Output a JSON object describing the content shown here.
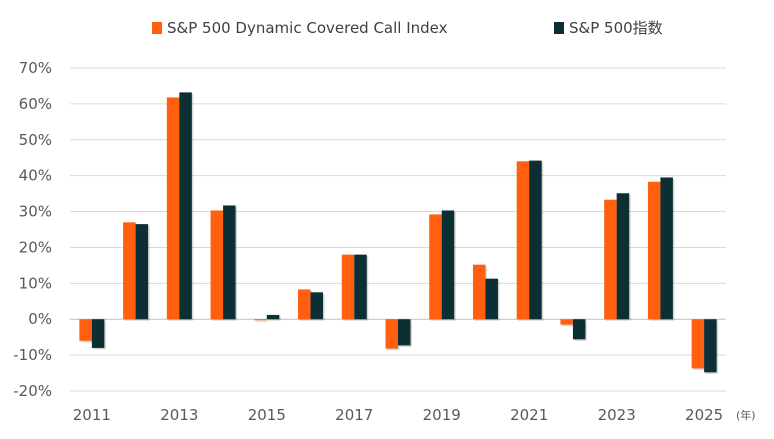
{
  "chart_data": {
    "type": "bar",
    "categories": [
      "2011",
      "2012",
      "2013",
      "2014",
      "2015",
      "2016",
      "2017",
      "2018",
      "2019",
      "2020",
      "2021",
      "2022",
      "2023",
      "2024",
      "2025"
    ],
    "x_tick_labels": [
      "2011",
      "2013",
      "2015",
      "2017",
      "2019",
      "2021",
      "2023",
      "2025"
    ],
    "x_unit_label": "(年)",
    "series": [
      {
        "name": "S&P 500 Dynamic Covered Call Index",
        "color": "#FF5F0F",
        "values": [
          -6.0,
          27.0,
          61.8,
          30.3,
          -0.3,
          8.3,
          18.0,
          -8.2,
          29.2,
          15.2,
          44.0,
          -1.5,
          33.3,
          38.3,
          -13.7
        ]
      },
      {
        "name": "S&P 500指数",
        "color": "#0B2F33",
        "values": [
          -8.0,
          26.5,
          63.2,
          31.7,
          1.2,
          7.5,
          18.0,
          -7.3,
          30.3,
          11.3,
          44.2,
          -5.6,
          35.1,
          39.5,
          -14.8
        ]
      }
    ],
    "ylim": [
      -20,
      70
    ],
    "y_ticks": [
      -20,
      -10,
      0,
      10,
      20,
      30,
      40,
      50,
      60,
      70
    ],
    "y_tick_labels": [
      "-20%",
      "-10%",
      "0%",
      "10%",
      "20%",
      "30%",
      "40%",
      "50%",
      "60%",
      "70%"
    ],
    "grid": true,
    "legend_position": "top-center",
    "gridline_color": "#D9D9D9",
    "axis_color": "#BFBFBF"
  }
}
